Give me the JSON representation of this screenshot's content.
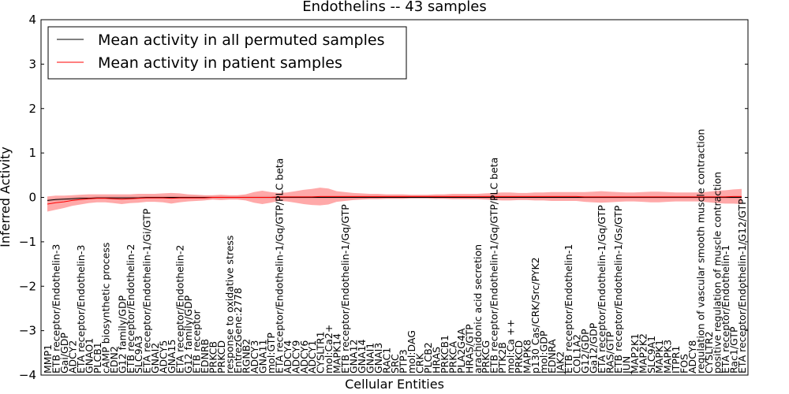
{
  "chart_data": {
    "type": "line",
    "title": "Endothelins -- 43 samples",
    "xlabel": "Cellular Entities",
    "ylabel": "Inferred Activity",
    "ylim": [
      -4,
      4
    ],
    "yticks": [
      -4,
      -3,
      -2,
      -1,
      0,
      1,
      2,
      3,
      4
    ],
    "grid": false,
    "legend_placement": "top-left",
    "categories": [
      "MMP1",
      "ETB receptor/Endothelin-3",
      "Gai/GDP",
      "ADCY2",
      "ETA receptor/Endothelin-3",
      "GNAO1",
      "PLCB1",
      "cAMP biosynthetic process",
      "EDN2",
      "G12 family/GDP",
      "ETB receptor/Endothelin-2",
      "SLC9A3",
      "ETA receptor/Endothelin-1/Gi/GTP",
      "GNAI2",
      "ADCY5",
      "GNA15",
      "ETA receptor/Endothelin-2",
      "G12 family/GDP",
      "ETB receptor",
      "EDNRB",
      "PRKCB",
      "PRKCD",
      "response to oxidative stress",
      "EntrezGene:2778",
      "RGNB2",
      "ADCY3",
      "GNA11",
      "mol:GTP",
      "ETA receptor/Endothelin-1/Gq/GTP/PLC beta",
      "ADCY4",
      "ADCY9",
      "ADCY6",
      "ADCY1",
      "CYSLTR1",
      "mol:Ca2+",
      "MAPK14",
      "ETB receptor/Endothelin-1/Gq/GTP",
      "GNA12",
      "GNA14",
      "GNAI1",
      "GNAI3",
      "RAC1",
      "SRC",
      "PTP3",
      "mol:DAG",
      "CRK",
      "PLCB2",
      "HRAS",
      "PRKCB1",
      "PRKCA",
      "PLA2G4A",
      "HRAS/GTP",
      "arachidonic acid secretion",
      "PRKCG",
      "ETB receptor/Endothelin-1/Gq/GTP/PLC beta",
      "PTK2B",
      "mol:Ca ++",
      "PRKCD",
      "MAPK8",
      "p130 Cas/CRK/Src/PYK2",
      "mol:GDP",
      "EDNRA",
      "JAK2",
      "ETB receptor/Endothelin-1",
      "COL1A2",
      "G12/GDP",
      "Ga12/GDP",
      "ETA receptor/Endothelin-1/Gq/GTP",
      "RAS/GTP",
      "ETB receptor/Endothelin-1/Gs/GTP",
      "JUN",
      "MAP2K1",
      "MAP2K2",
      "SLC9A1",
      "MAPK1",
      "MAPK3",
      "ITPR1",
      "FOS",
      "ADCY8",
      "regulation of vascular smooth muscle contraction",
      "CYSLTR2",
      "positive regulation of muscle contraction",
      "ETA receptor/Endothelin-1",
      "Rac1/GTP",
      "ETA receptor/Endothelin-1/G12/GTP"
    ],
    "series": [
      {
        "name": "Mean activity in all permuted samples",
        "color": "#000000",
        "values": [
          -0.07,
          -0.05,
          -0.04,
          -0.03,
          -0.02,
          -0.02,
          -0.01,
          -0.01,
          -0.01,
          -0.01,
          -0.01,
          -0.01,
          0.0,
          0.0,
          0.0,
          0.0,
          0.0,
          0.0,
          0.0,
          0.0,
          0.0,
          0.0,
          0.0,
          0.0,
          0.0,
          0.0,
          0.0,
          0.0,
          0.0,
          0.0,
          0.0,
          0.0,
          0.0,
          0.0,
          0.0,
          0.0,
          0.0,
          0.0,
          0.0,
          0.0,
          0.0,
          0.0,
          0.0,
          0.0,
          0.0,
          0.0,
          0.0,
          0.0,
          0.0,
          0.0,
          0.0,
          0.0,
          0.0,
          0.0,
          0.0,
          0.0,
          0.0,
          0.0,
          0.0,
          0.0,
          0.0,
          0.0,
          0.0,
          0.0,
          0.0,
          0.0,
          0.0,
          0.0,
          0.0,
          0.0,
          0.0,
          0.0,
          0.0,
          0.0,
          0.0,
          0.0,
          0.0,
          0.0,
          0.0,
          0.0,
          0.0,
          0.0,
          0.0,
          0.0,
          0.0
        ],
        "band": 0.03
      },
      {
        "name": "Mean activity in patient samples",
        "color": "#ff0000",
        "values": [
          -0.15,
          -0.12,
          -0.1,
          -0.07,
          -0.05,
          -0.03,
          -0.02,
          -0.02,
          -0.03,
          -0.04,
          -0.03,
          -0.02,
          -0.01,
          -0.01,
          -0.01,
          -0.02,
          -0.01,
          -0.01,
          -0.01,
          -0.01,
          0.0,
          0.0,
          0.0,
          0.0,
          0.0,
          0.0,
          0.0,
          0.0,
          0.01,
          0.01,
          0.01,
          0.01,
          0.01,
          0.02,
          0.02,
          0.02,
          0.02,
          0.02,
          0.02,
          0.02,
          0.02,
          0.02,
          0.02,
          0.02,
          0.02,
          0.02,
          0.02,
          0.02,
          0.02,
          0.02,
          0.02,
          0.02,
          0.02,
          0.02,
          0.02,
          0.02,
          0.02,
          0.02,
          0.02,
          0.02,
          0.02,
          0.02,
          0.02,
          0.02,
          0.02,
          0.01,
          0.01,
          0.01,
          0.01,
          0.01,
          0.01,
          0.01,
          0.01,
          0.01,
          0.01,
          0.01,
          0.01,
          0.01,
          0.01,
          0.01,
          0.01,
          0.01,
          0.01,
          0.02,
          0.02
        ],
        "band": [
          0.17,
          0.16,
          0.14,
          0.12,
          0.11,
          0.1,
          0.09,
          0.09,
          0.1,
          0.11,
          0.1,
          0.1,
          0.09,
          0.09,
          0.1,
          0.12,
          0.1,
          0.08,
          0.07,
          0.06,
          0.05,
          0.06,
          0.05,
          0.05,
          0.07,
          0.12,
          0.15,
          0.12,
          0.09,
          0.1,
          0.13,
          0.16,
          0.18,
          0.2,
          0.18,
          0.12,
          0.1,
          0.08,
          0.07,
          0.06,
          0.06,
          0.05,
          0.05,
          0.05,
          0.04,
          0.04,
          0.04,
          0.05,
          0.05,
          0.06,
          0.06,
          0.06,
          0.06,
          0.07,
          0.08,
          0.09,
          0.09,
          0.08,
          0.08,
          0.09,
          0.09,
          0.1,
          0.1,
          0.1,
          0.1,
          0.11,
          0.12,
          0.13,
          0.12,
          0.11,
          0.1,
          0.1,
          0.11,
          0.12,
          0.12,
          0.11,
          0.1,
          0.1,
          0.1,
          0.1,
          0.12,
          0.14,
          0.15,
          0.16,
          0.17
        ]
      }
    ]
  }
}
